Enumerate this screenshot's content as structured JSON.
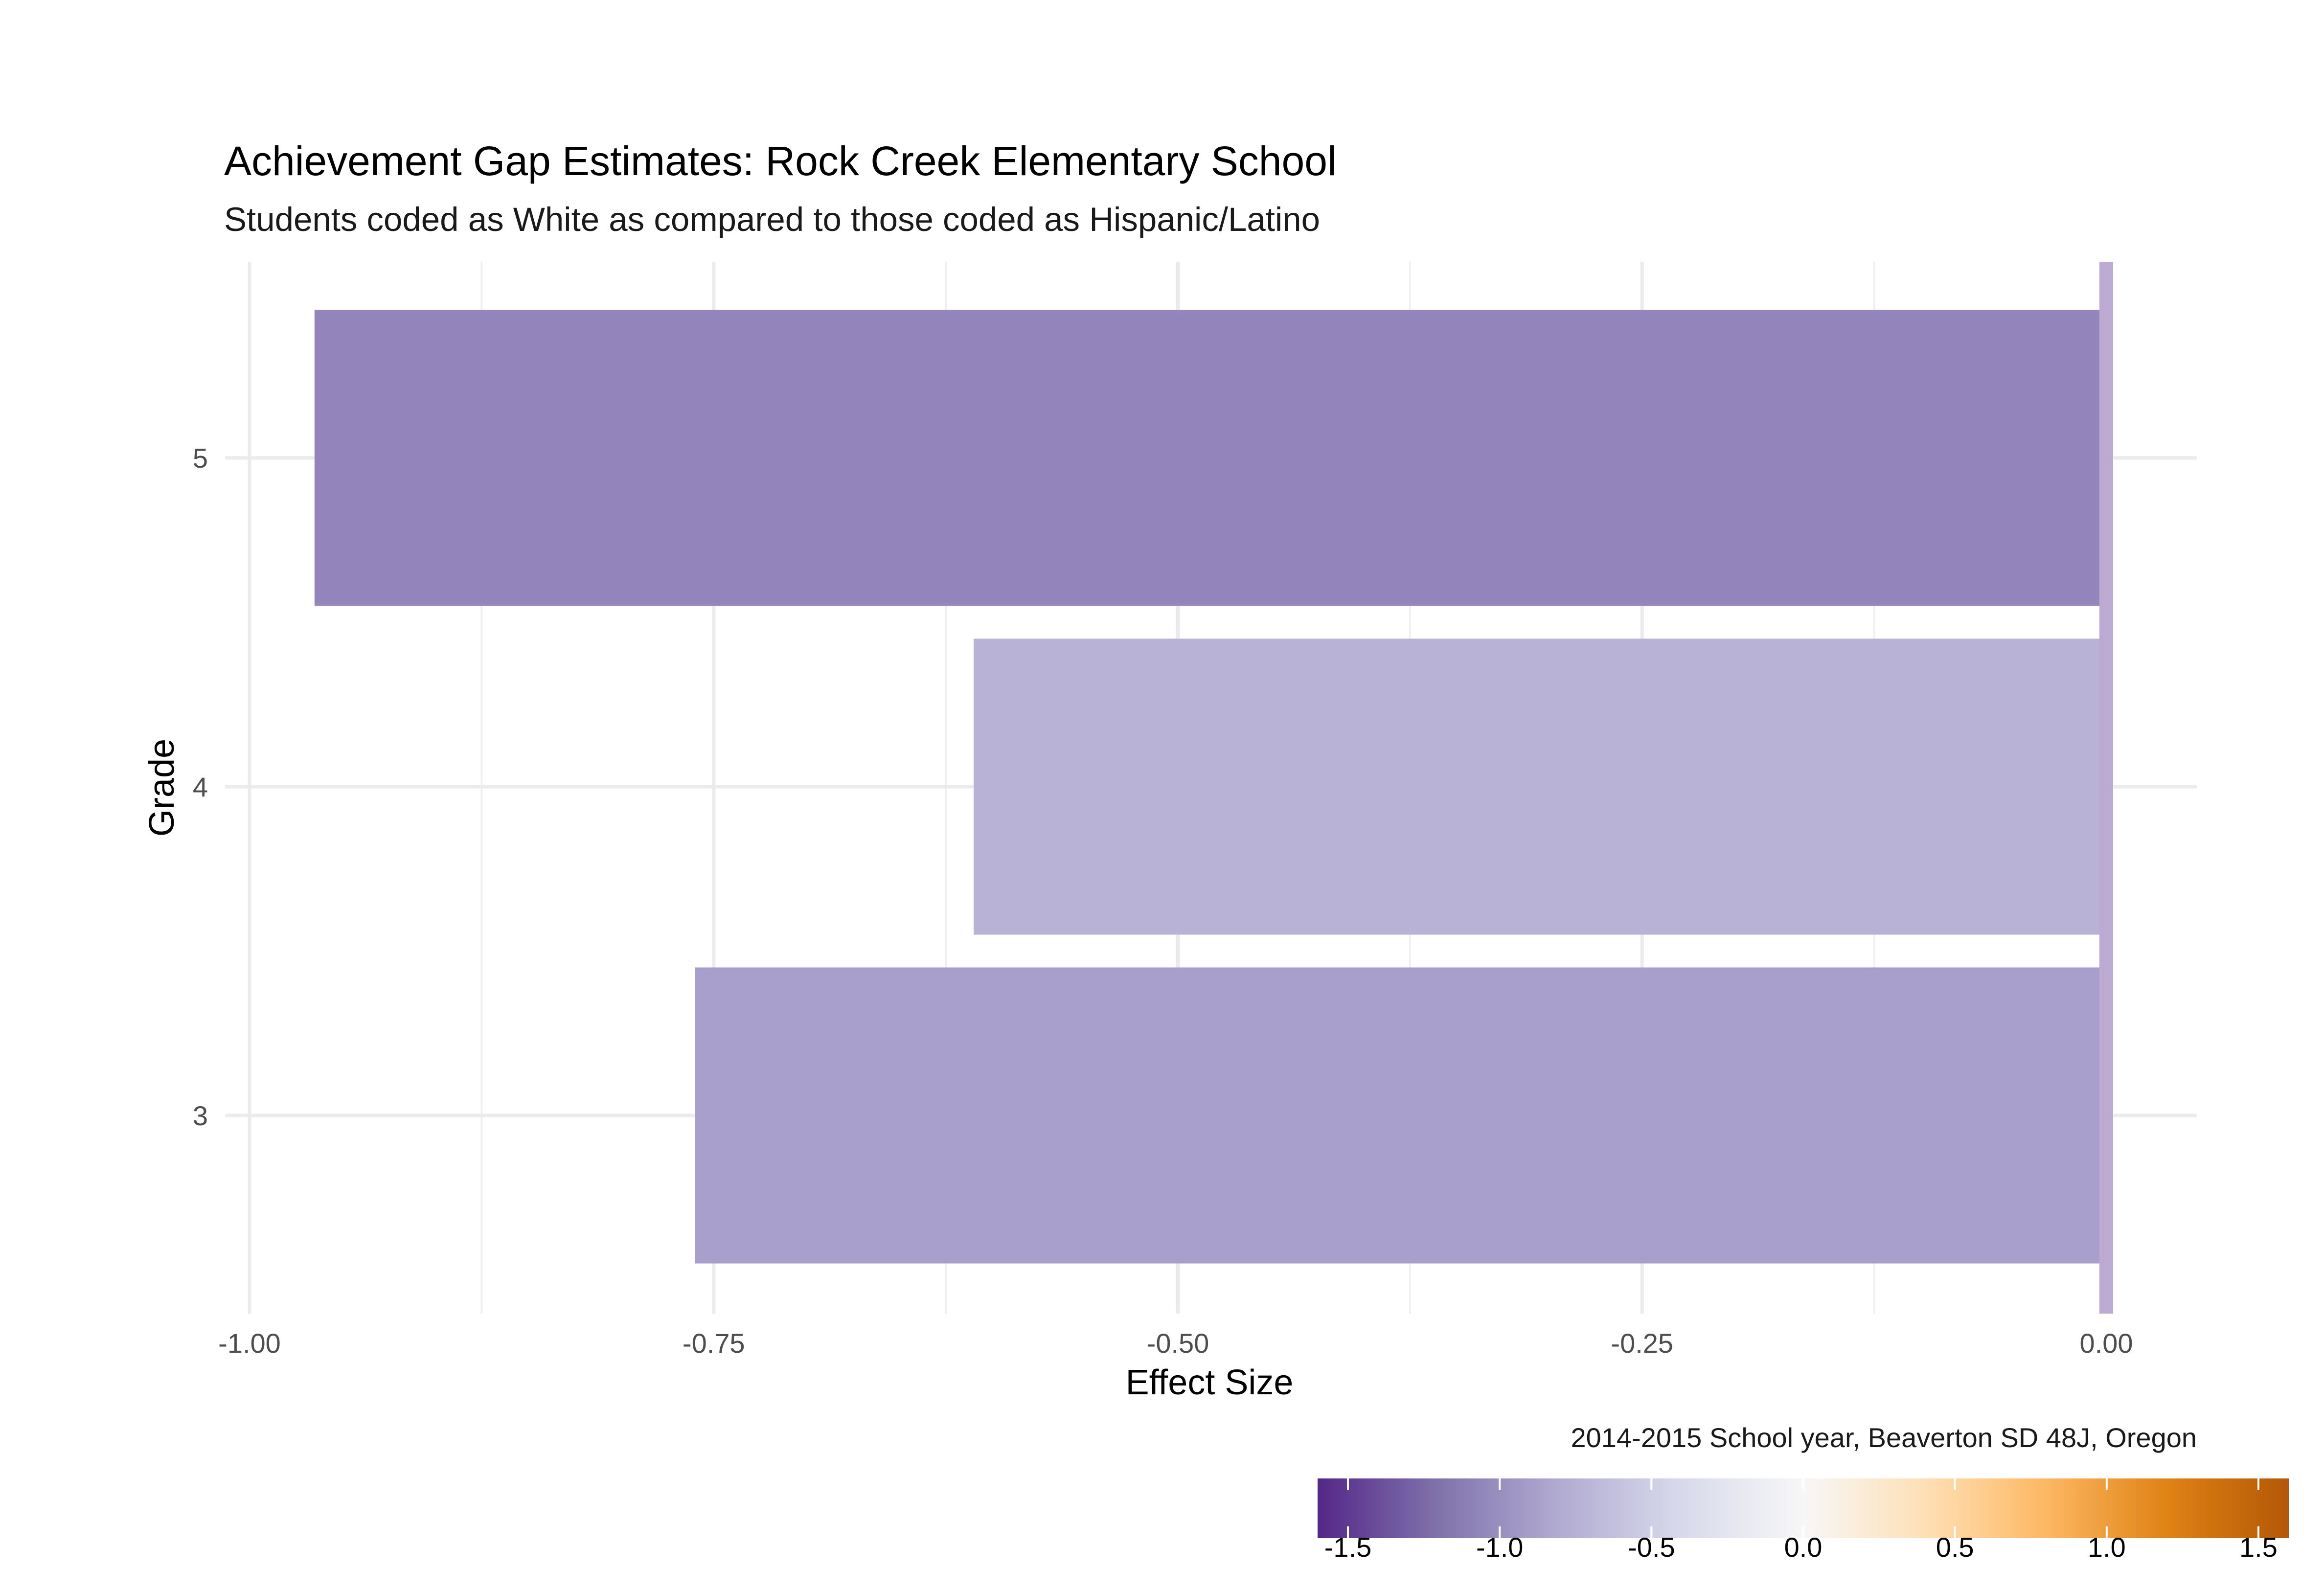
{
  "chart_data": {
    "type": "bar",
    "orientation": "horizontal",
    "title": "Achievement Gap Estimates: Rock Creek Elementary School",
    "subtitle": "Students coded as White as compared to those coded as Hispanic/Latino",
    "xlabel": "Effect Size",
    "ylabel": "Grade",
    "categories": [
      "3",
      "4",
      "5"
    ],
    "values": [
      -0.76,
      -0.61,
      -0.965
    ],
    "bar_colors": [
      "#a89fcc",
      "#b8b3d6",
      "#9384bc"
    ],
    "xlim": [
      -1.0,
      0.0
    ],
    "x_ticks": [
      "-1.00",
      "-0.75",
      "-0.50",
      "-0.25",
      "0.00"
    ],
    "x_tick_values": [
      -1.0,
      -0.75,
      -0.5,
      -0.25,
      0.0
    ],
    "zero_line_color": "#bcaad2",
    "grid": true,
    "caption": "2014-2015 School year, Beaverton SD 48J, Oregon",
    "colorbar": {
      "range": [
        -1.6,
        1.6
      ],
      "ticks": [
        "-1.5",
        "-1.0",
        "-0.5",
        "0.0",
        "0.5",
        "1.0",
        "1.5"
      ],
      "tick_values": [
        -1.5,
        -1.0,
        -0.5,
        0.0,
        0.5,
        1.0,
        1.5
      ],
      "colors": [
        "#542788",
        "#8073ac",
        "#b2abd2",
        "#d8daeb",
        "#f7f7f7",
        "#fee0b6",
        "#fdb863",
        "#e08214",
        "#b35806"
      ]
    }
  }
}
